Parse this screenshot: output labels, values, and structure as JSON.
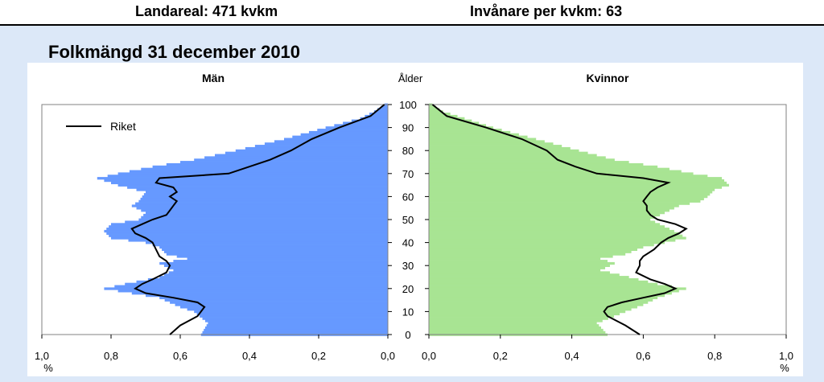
{
  "header": {
    "land_area": "Landareal: 471 kvkm",
    "density": "Invånare per kvkm: 63"
  },
  "section_title": "Folkmängd 31 december 2010",
  "colors": {
    "men": "#6699ff",
    "women": "#a8e493",
    "riket": "#000000"
  },
  "chart_data": {
    "type": "bar",
    "title": "Folkmängd 31 december 2010",
    "left_title": "Män",
    "right_title": "Kvinnor",
    "center_label": "Ålder",
    "x_unit": "%",
    "legend_label": "Riket",
    "age_ticks": [
      "0",
      "10",
      "20",
      "30",
      "40",
      "50",
      "60",
      "70",
      "80",
      "90",
      "100"
    ],
    "left_ticks": [
      "1,0",
      "0,8",
      "0,6",
      "0,4",
      "0,2",
      "0,0"
    ],
    "right_ticks": [
      "0,0",
      "0,2",
      "0,4",
      "0,6",
      "0,8",
      "1,0"
    ],
    "xlim": [
      0,
      1.0
    ],
    "ylim": [
      0,
      100
    ],
    "series": [
      {
        "name": "Män",
        "side": "left",
        "control_points": [
          [
            0,
            0.54
          ],
          [
            5,
            0.52
          ],
          [
            10,
            0.56
          ],
          [
            12,
            0.6
          ],
          [
            14,
            0.63
          ],
          [
            16,
            0.66
          ],
          [
            18,
            0.74
          ],
          [
            20,
            0.82
          ],
          [
            22,
            0.76
          ],
          [
            25,
            0.66
          ],
          [
            28,
            0.62
          ],
          [
            31,
            0.66
          ],
          [
            33,
            0.58
          ],
          [
            35,
            0.64
          ],
          [
            38,
            0.66
          ],
          [
            40,
            0.7
          ],
          [
            42,
            0.8
          ],
          [
            45,
            0.82
          ],
          [
            48,
            0.8
          ],
          [
            50,
            0.72
          ],
          [
            53,
            0.7
          ],
          [
            56,
            0.74
          ],
          [
            58,
            0.72
          ],
          [
            62,
            0.7
          ],
          [
            65,
            0.78
          ],
          [
            68,
            0.84
          ],
          [
            70,
            0.78
          ],
          [
            73,
            0.68
          ],
          [
            76,
            0.56
          ],
          [
            80,
            0.44
          ],
          [
            85,
            0.3
          ],
          [
            90,
            0.18
          ],
          [
            94,
            0.08
          ],
          [
            97,
            0.04
          ],
          [
            100,
            0.01
          ]
        ]
      },
      {
        "name": "Kvinnor",
        "side": "right",
        "control_points": [
          [
            0,
            0.5
          ],
          [
            5,
            0.47
          ],
          [
            10,
            0.55
          ],
          [
            13,
            0.6
          ],
          [
            16,
            0.64
          ],
          [
            18,
            0.68
          ],
          [
            20,
            0.72
          ],
          [
            22,
            0.64
          ],
          [
            25,
            0.56
          ],
          [
            28,
            0.48
          ],
          [
            31,
            0.52
          ],
          [
            33,
            0.48
          ],
          [
            35,
            0.55
          ],
          [
            38,
            0.6
          ],
          [
            40,
            0.66
          ],
          [
            42,
            0.72
          ],
          [
            44,
            0.7
          ],
          [
            47,
            0.66
          ],
          [
            50,
            0.62
          ],
          [
            53,
            0.66
          ],
          [
            56,
            0.7
          ],
          [
            58,
            0.76
          ],
          [
            60,
            0.78
          ],
          [
            63,
            0.8
          ],
          [
            65,
            0.84
          ],
          [
            68,
            0.82
          ],
          [
            70,
            0.74
          ],
          [
            73,
            0.64
          ],
          [
            76,
            0.52
          ],
          [
            80,
            0.42
          ],
          [
            85,
            0.3
          ],
          [
            90,
            0.18
          ],
          [
            94,
            0.1
          ],
          [
            97,
            0.04
          ],
          [
            100,
            0.01
          ]
        ]
      },
      {
        "name": "Riket (Män)",
        "side": "left",
        "type": "line",
        "control_points": [
          [
            0,
            0.63
          ],
          [
            4,
            0.6
          ],
          [
            8,
            0.55
          ],
          [
            10,
            0.54
          ],
          [
            12,
            0.53
          ],
          [
            14,
            0.55
          ],
          [
            16,
            0.62
          ],
          [
            18,
            0.7
          ],
          [
            20,
            0.73
          ],
          [
            22,
            0.71
          ],
          [
            24,
            0.68
          ],
          [
            27,
            0.64
          ],
          [
            30,
            0.63
          ],
          [
            32,
            0.64
          ],
          [
            34,
            0.66
          ],
          [
            37,
            0.67
          ],
          [
            40,
            0.68
          ],
          [
            42,
            0.7
          ],
          [
            44,
            0.73
          ],
          [
            46,
            0.74
          ],
          [
            48,
            0.71
          ],
          [
            50,
            0.68
          ],
          [
            52,
            0.64
          ],
          [
            54,
            0.63
          ],
          [
            56,
            0.62
          ],
          [
            58,
            0.61
          ],
          [
            60,
            0.63
          ],
          [
            62,
            0.61
          ],
          [
            64,
            0.62
          ],
          [
            66,
            0.67
          ],
          [
            68,
            0.66
          ],
          [
            70,
            0.46
          ],
          [
            73,
            0.4
          ],
          [
            76,
            0.34
          ],
          [
            80,
            0.28
          ],
          [
            85,
            0.22
          ],
          [
            90,
            0.14
          ],
          [
            95,
            0.05
          ],
          [
            100,
            0.01
          ]
        ]
      },
      {
        "name": "Riket (Kvinnor)",
        "side": "right",
        "type": "line",
        "control_points": [
          [
            0,
            0.59
          ],
          [
            4,
            0.55
          ],
          [
            8,
            0.5
          ],
          [
            10,
            0.49
          ],
          [
            12,
            0.5
          ],
          [
            14,
            0.54
          ],
          [
            16,
            0.6
          ],
          [
            18,
            0.66
          ],
          [
            20,
            0.69
          ],
          [
            22,
            0.66
          ],
          [
            24,
            0.62
          ],
          [
            27,
            0.58
          ],
          [
            30,
            0.59
          ],
          [
            32,
            0.59
          ],
          [
            34,
            0.6
          ],
          [
            37,
            0.63
          ],
          [
            40,
            0.65
          ],
          [
            42,
            0.67
          ],
          [
            44,
            0.7
          ],
          [
            46,
            0.72
          ],
          [
            48,
            0.69
          ],
          [
            50,
            0.64
          ],
          [
            52,
            0.62
          ],
          [
            54,
            0.61
          ],
          [
            56,
            0.61
          ],
          [
            58,
            0.6
          ],
          [
            60,
            0.61
          ],
          [
            62,
            0.62
          ],
          [
            64,
            0.64
          ],
          [
            66,
            0.67
          ],
          [
            68,
            0.6
          ],
          [
            70,
            0.47
          ],
          [
            73,
            0.41
          ],
          [
            76,
            0.36
          ],
          [
            80,
            0.33
          ],
          [
            85,
            0.26
          ],
          [
            90,
            0.16
          ],
          [
            95,
            0.05
          ],
          [
            100,
            0.01
          ]
        ]
      }
    ]
  }
}
